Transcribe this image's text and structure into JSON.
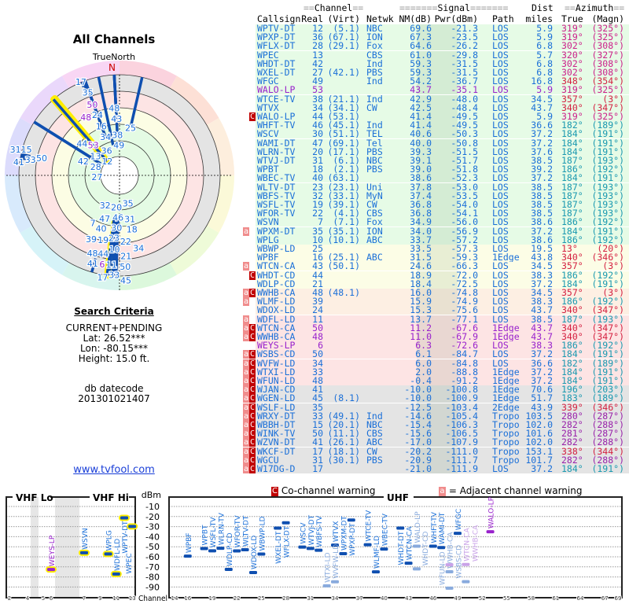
{
  "polar": {
    "title": "All Channels",
    "north_label": "TrueNorth",
    "n_marker": "N"
  },
  "criteria": {
    "heading": "Search Criteria",
    "mode": "CURRENT+PENDING",
    "lat": "Lat: 26.52***",
    "lon": "Lon: -80.15***",
    "height": "Height: 15.0 ft.",
    "db_label": "db datecode",
    "db_value": "201301021407"
  },
  "site_link": "www.tvfool.com",
  "table": {
    "group_headers": {
      "channel": "Channel",
      "signal": "Signal",
      "dist": "Dist",
      "azimuth": "Azimuth"
    },
    "columns": [
      "Callsign",
      "Real",
      "(Virt)",
      "Netwk",
      "NM(dB)",
      "Pwr(dBm)",
      "Path",
      "miles",
      "True",
      "(Magn)"
    ],
    "rows": [
      [
        "WPTV-DT",
        "12",
        "(5.1)",
        "NBC",
        "69.6",
        "-21.3",
        "LOS",
        "5.9",
        "319°",
        "(325°)",
        "",
        "g"
      ],
      [
        "WPXP-DT",
        "36",
        "(67.1)",
        "ION",
        "67.3",
        "-23.5",
        "LOS",
        "5.9",
        "319°",
        "(325°)",
        "",
        "g"
      ],
      [
        "WFLX-DT",
        "28",
        "(29.1)",
        "Fox",
        "64.6",
        "-26.2",
        "LOS",
        "6.8",
        "302°",
        "(308°)",
        "",
        "g"
      ],
      [
        "WPEC",
        "13",
        "",
        "CBS",
        "61.0",
        "-29.8",
        "LOS",
        "5.7",
        "320°",
        "(327°)",
        "",
        "g"
      ],
      [
        "WHDT-DT",
        "42",
        "",
        "Ind",
        "59.3",
        "-31.5",
        "LOS",
        "6.8",
        "302°",
        "(308°)",
        "",
        "g"
      ],
      [
        "WXEL-DT",
        "27",
        "(42.1)",
        "PBS",
        "59.3",
        "-31.5",
        "LOS",
        "6.8",
        "302°",
        "(308°)",
        "",
        "g"
      ],
      [
        "WFGC",
        "49",
        "",
        "Ind",
        "54.2",
        "-36.7",
        "LOS",
        "16.8",
        "348°",
        "(354°)",
        "",
        "g"
      ],
      [
        "WALO-LP",
        "53",
        "",
        "",
        "43.7",
        "-35.1",
        "LOS",
        "5.9",
        "319°",
        "(325°)",
        "",
        "g",
        "lp"
      ],
      [
        "WTCE-TV",
        "38",
        "(21.1)",
        "Ind",
        "42.9",
        "-48.0",
        "LOS",
        "34.5",
        "357°",
        "(3°)",
        "",
        "g"
      ],
      [
        "WTVX",
        "34",
        "(34.1)",
        "CW",
        "42.5",
        "-48.4",
        "LOS",
        "43.7",
        "340°",
        "(347°)",
        "",
        "g"
      ],
      [
        "WALO-LP",
        "44",
        "(53.1)",
        "",
        "41.4",
        "-49.5",
        "LOS",
        "5.9",
        "319°",
        "(325°)",
        "C",
        "g"
      ],
      [
        "WHFT-TV",
        "46",
        "(45.1)",
        "Ind",
        "41.4",
        "-49.5",
        "LOS",
        "36.6",
        "182°",
        "(189°)",
        "",
        "g"
      ],
      [
        "WSCV",
        "30",
        "(51.1)",
        "TEL",
        "40.6",
        "-50.3",
        "LOS",
        "37.2",
        "184°",
        "(191°)",
        "",
        "g"
      ],
      [
        "WAMI-DT",
        "47",
        "(69.1)",
        "Tel",
        "40.0",
        "-50.8",
        "LOS",
        "37.2",
        "184°",
        "(191°)",
        "",
        "g"
      ],
      [
        "WLRN-TV",
        "20",
        "(17.1)",
        "PBS",
        "39.3",
        "-51.5",
        "LOS",
        "37.6",
        "184°",
        "(191°)",
        "",
        "g"
      ],
      [
        "WTVJ-DT",
        "31",
        "(6.1)",
        "NBC",
        "39.1",
        "-51.7",
        "LOS",
        "38.5",
        "187°",
        "(193°)",
        "",
        "g"
      ],
      [
        "WPBT",
        "18",
        "(2.1)",
        "PBS",
        "39.0",
        "-51.8",
        "LOS",
        "39.2",
        "186°",
        "(192°)",
        "",
        "g"
      ],
      [
        "WBEC-TV",
        "40",
        "(63.1)",
        "",
        "38.6",
        "-52.3",
        "LOS",
        "37.2",
        "184°",
        "(191°)",
        "",
        "g"
      ],
      [
        "WLTV-DT",
        "23",
        "(23.1)",
        "Uni",
        "37.8",
        "-53.0",
        "LOS",
        "38.5",
        "187°",
        "(193°)",
        "",
        "g"
      ],
      [
        "WBFS-TV",
        "32",
        "(33.1)",
        "MyN",
        "37.4",
        "-53.5",
        "LOS",
        "38.5",
        "187°",
        "(193°)",
        "",
        "g"
      ],
      [
        "WSFL-TV",
        "19",
        "(39.1)",
        "CW",
        "36.8",
        "-54.0",
        "LOS",
        "38.5",
        "187°",
        "(193°)",
        "",
        "g"
      ],
      [
        "WFOR-TV",
        "22",
        "(4.1)",
        "CBS",
        "36.8",
        "-54.1",
        "LOS",
        "38.5",
        "187°",
        "(193°)",
        "",
        "g"
      ],
      [
        "WSVN",
        "7",
        "(7.1)",
        "Fox",
        "34.9",
        "-56.0",
        "LOS",
        "38.6",
        "186°",
        "(192°)",
        "",
        "g"
      ],
      [
        "WPXM-DT",
        "35",
        "(35.1)",
        "ION",
        "34.0",
        "-56.9",
        "LOS",
        "37.2",
        "184°",
        "(191°)",
        "a",
        "g"
      ],
      [
        "WPLG",
        "10",
        "(10.1)",
        "ABC",
        "33.7",
        "-57.2",
        "LOS",
        "38.6",
        "186°",
        "(192°)",
        "",
        "g"
      ],
      [
        "WBWP-LD",
        "25",
        "",
        "",
        "33.5",
        "-57.3",
        "LOS",
        "19.5",
        "13°",
        "(20°)",
        "",
        "y"
      ],
      [
        "WPBF",
        "16",
        "(25.1)",
        "ABC",
        "31.5",
        "-59.3",
        "1Edge",
        "43.8",
        "340°",
        "(346°)",
        "",
        "y"
      ],
      [
        "WTCN-CA",
        "43",
        "(50.1)",
        "",
        "24.6",
        "-66.3",
        "LOS",
        "34.5",
        "357°",
        "(3°)",
        "a",
        "y"
      ],
      [
        "WHDT-CD",
        "44",
        "",
        "",
        "18.9",
        "-72.0",
        "LOS",
        "38.3",
        "186°",
        "(192°)",
        "C",
        "y"
      ],
      [
        "WDLP-CD",
        "21",
        "",
        "",
        "18.4",
        "-72.5",
        "LOS",
        "37.2",
        "184°",
        "(191°)",
        "",
        "y"
      ],
      [
        "WWHB-CA",
        "48",
        "(48.1)",
        "",
        "16.0",
        "-74.8",
        "LOS",
        "34.5",
        "357°",
        "(3°)",
        "aC",
        "o"
      ],
      [
        "WLMF-LD",
        "39",
        "",
        "",
        "15.9",
        "-74.9",
        "LOS",
        "38.3",
        "186°",
        "(192°)",
        "a",
        "o"
      ],
      [
        "WDOX-LD",
        "24",
        "",
        "",
        "15.3",
        "-75.6",
        "LOS",
        "43.7",
        "340°",
        "(347°)",
        "",
        "o"
      ],
      [
        "WDFL-LD",
        "11",
        "",
        "",
        "13.7",
        "-77.1",
        "LOS",
        "38.5",
        "187°",
        "(193°)",
        "a",
        "p"
      ],
      [
        "WTCN-CA",
        "50",
        "",
        "",
        "11.2",
        "-67.6",
        "1Edge",
        "43.7",
        "340°",
        "(347°)",
        "aC",
        "p",
        "lp"
      ],
      [
        "WWHB-CA",
        "48",
        "",
        "",
        "11.0",
        "-67.9",
        "1Edge",
        "43.7",
        "340°",
        "(347°)",
        "aC",
        "p",
        "lp"
      ],
      [
        "WEYS-LP",
        "6",
        "",
        "",
        "6.3",
        "-72.6",
        "LOS",
        "38.3",
        "186°",
        "(192°)",
        "",
        "p",
        "lp"
      ],
      [
        "WSBS-CD",
        "50",
        "",
        "",
        "6.1",
        "-84.7",
        "LOS",
        "37.2",
        "184°",
        "(191°)",
        "aC",
        "p"
      ],
      [
        "WVFW-LD",
        "34",
        "",
        "",
        "6.0",
        "-84.8",
        "LOS",
        "36.6",
        "182°",
        "(189°)",
        "aC",
        "p"
      ],
      [
        "WTXI-LD",
        "33",
        "",
        "",
        "2.0",
        "-88.8",
        "1Edge",
        "37.2",
        "184°",
        "(191°)",
        "aC",
        "p"
      ],
      [
        "WFUN-LD",
        "48",
        "",
        "",
        "-0.4",
        "-91.2",
        "1Edge",
        "37.2",
        "184°",
        "(191°)",
        "aC",
        "p"
      ],
      [
        "WJAN-CD",
        "41",
        "",
        "",
        "-10.0",
        "-100.8",
        "1Edge",
        "70.6",
        "196°",
        "(203°)",
        "aC",
        "x"
      ],
      [
        "WGEN-LD",
        "45",
        "(8.1)",
        "",
        "-10.0",
        "-100.9",
        "1Edge",
        "51.7",
        "183°",
        "(189°)",
        "aC",
        "x"
      ],
      [
        "WSLF-LD",
        "35",
        "",
        "",
        "-12.5",
        "-103.4",
        "2Edge",
        "43.9",
        "339°",
        "(346°)",
        "aC",
        "x"
      ],
      [
        "WRXY-DT",
        "33",
        "(49.1)",
        "Ind",
        "-14.6",
        "-105.4",
        "Tropo",
        "103.5",
        "280°",
        "(287°)",
        "aC",
        "x"
      ],
      [
        "WBBH-DT",
        "15",
        "(20.1)",
        "NBC",
        "-15.4",
        "-106.3",
        "Tropo",
        "102.0",
        "282°",
        "(288°)",
        "aC",
        "x"
      ],
      [
        "WINK-TV",
        "50",
        "(11.1)",
        "CBS",
        "-15.6",
        "-106.5",
        "Tropo",
        "101.6",
        "281°",
        "(287°)",
        "aC",
        "x"
      ],
      [
        "WZVN-DT",
        "41",
        "(26.1)",
        "ABC",
        "-17.0",
        "-107.9",
        "Tropo",
        "102.0",
        "282°",
        "(288°)",
        "aC",
        "x"
      ],
      [
        "WKCF-DT",
        "17",
        "(18.1)",
        "CW",
        "-20.2",
        "-111.0",
        "Tropo",
        "153.1",
        "338°",
        "(344°)",
        "aC",
        "x"
      ],
      [
        "WGCU",
        "31",
        "(30.1)",
        "PBS",
        "-20.9",
        "-111.7",
        "Tropo",
        "101.7",
        "282°",
        "(288°)",
        "aC",
        "x"
      ],
      [
        "W17DG-D",
        "17",
        "",
        "",
        "-21.0",
        "-111.9",
        "LOS",
        "37.2",
        "184°",
        "(191°)",
        "aC",
        "x"
      ]
    ]
  },
  "legend": {
    "co_channel_marker": "C",
    "co_channel_text": "Co-channel warning",
    "adjacent_marker": "a",
    "adjacent_text": "= Adjacent channel warning"
  },
  "chart": {
    "vhf_lo_label": "VHF Lo",
    "vhf_hi_label": "VHF Hi",
    "uhf_label": "UHF",
    "y_unit": "dBm",
    "x_label": "Channel",
    "y_ticks": [
      "-10",
      "-20",
      "-30",
      "-40",
      "-50",
      "-60",
      "-70",
      "-80",
      "-90"
    ],
    "vhf_lo_ticks": [
      "2",
      "4",
      "5",
      "6"
    ],
    "vhf_hi_ticks": [
      "7",
      "9",
      "11",
      "13"
    ],
    "uhf_ticks": [
      "14",
      "16",
      "19",
      "22",
      "25",
      "28",
      "31",
      "34",
      "37",
      "40",
      "43",
      "46",
      "49",
      "52",
      "55",
      "58",
      "61",
      "64",
      "67",
      "69"
    ]
  },
  "colors": {
    "text_blue": "#1a6fd8",
    "low_power_purple": "#9922cc",
    "bar_blue": "#0f4fb0",
    "vhf_highlight": "#ffee00",
    "co_channel": "#c00000",
    "adjacent": "#f08c8c",
    "north_red": "#cc0000"
  }
}
